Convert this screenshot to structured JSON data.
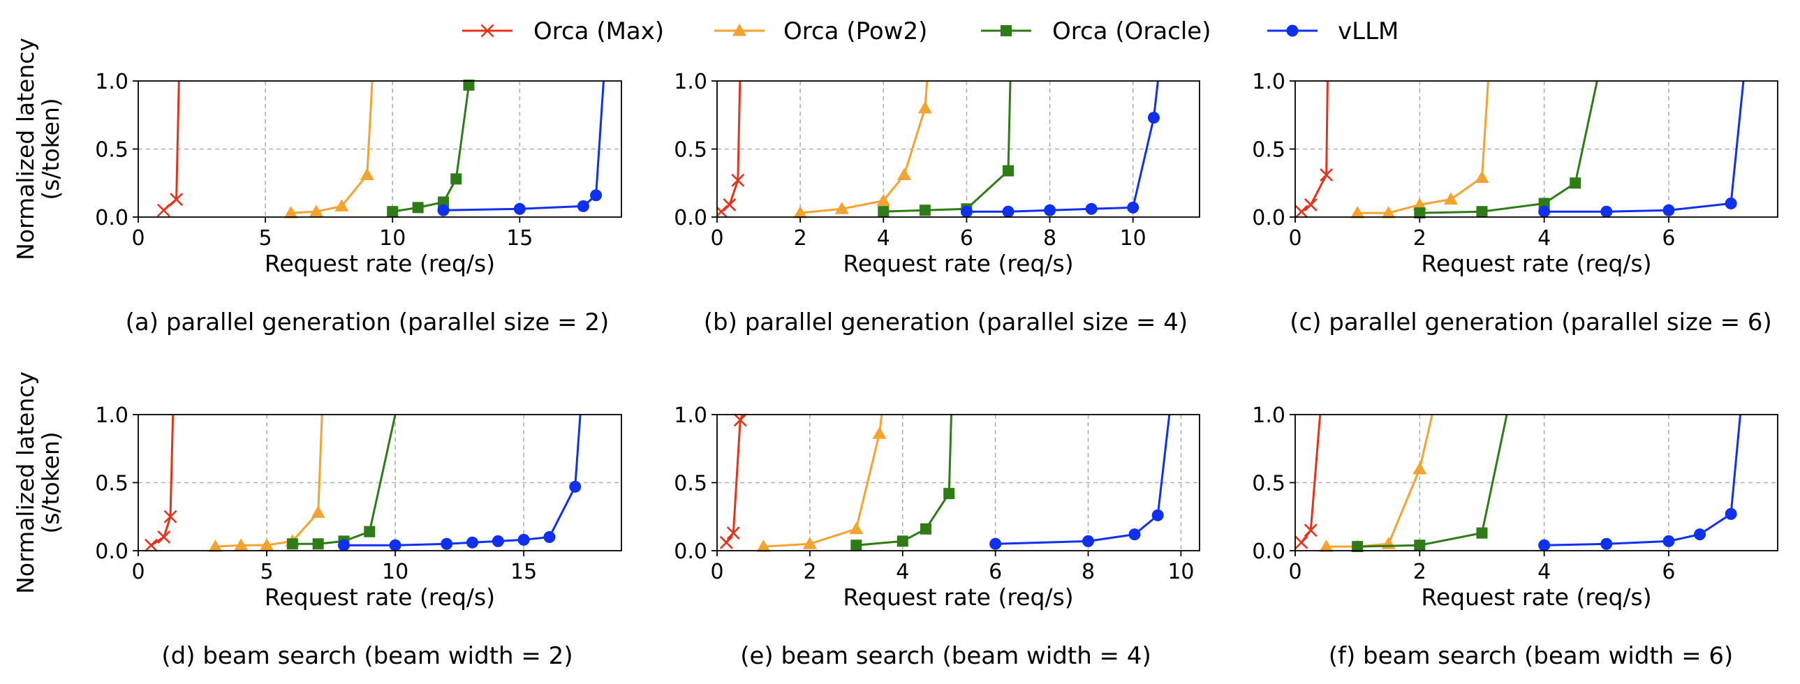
{
  "legend": [
    {
      "label": "Orca (Max)",
      "color": "#e8311a",
      "marker": "x"
    },
    {
      "label": "Orca (Pow2)",
      "color": "#f4a230",
      "marker": "triangle"
    },
    {
      "label": "Orca (Oracle)",
      "color": "#2e7b17",
      "marker": "square"
    },
    {
      "label": "vLLM",
      "color": "#1030f0",
      "marker": "circle"
    }
  ],
  "chart_data": [
    {
      "type": "line",
      "caption": "(a) parallel generation (parallel size = 2)",
      "xlabel": "Request rate (req/s)",
      "ylabel": [
        "Normalized latency",
        "(s/token)"
      ],
      "xlim": [
        0,
        19
      ],
      "ylim": [
        0,
        1.0
      ],
      "xticks": [
        0,
        5,
        10,
        15
      ],
      "yticks": [
        0.0,
        0.5,
        1.0
      ],
      "grid": true,
      "series": [
        {
          "name": "Orca (Max)",
          "x": [
            1.0,
            1.5,
            1.6
          ],
          "y": [
            0.05,
            0.13,
            1.0
          ]
        },
        {
          "name": "Orca (Pow2)",
          "x": [
            6.0,
            7.0,
            8.0,
            9.0,
            9.2
          ],
          "y": [
            0.03,
            0.04,
            0.08,
            0.31,
            1.0
          ]
        },
        {
          "name": "Orca (Oracle)",
          "x": [
            10.0,
            11.0,
            12.0,
            12.5,
            13.0
          ],
          "y": [
            0.04,
            0.07,
            0.11,
            0.28,
            0.97
          ]
        },
        {
          "name": "vLLM",
          "x": [
            12.0,
            15.0,
            17.5,
            18.0,
            18.3
          ],
          "y": [
            0.05,
            0.06,
            0.08,
            0.16,
            1.0
          ]
        }
      ]
    },
    {
      "type": "line",
      "caption": "(b) parallel generation (parallel size = 4)",
      "xlabel": "Request rate (req/s)",
      "ylabel": [],
      "xlim": [
        0,
        11.6
      ],
      "ylim": [
        0,
        1.0
      ],
      "xticks": [
        0,
        2,
        4,
        6,
        8,
        10
      ],
      "yticks": [
        0.0,
        0.5,
        1.0
      ],
      "grid": true,
      "series": [
        {
          "name": "Orca (Max)",
          "x": [
            0.1,
            0.3,
            0.5,
            0.55
          ],
          "y": [
            0.04,
            0.09,
            0.27,
            1.0
          ]
        },
        {
          "name": "Orca (Pow2)",
          "x": [
            2.0,
            3.0,
            4.0,
            4.5,
            5.0,
            5.05
          ],
          "y": [
            0.03,
            0.06,
            0.12,
            0.31,
            0.8,
            1.0
          ]
        },
        {
          "name": "Orca (Oracle)",
          "x": [
            4.0,
            5.0,
            6.0,
            7.0,
            7.05
          ],
          "y": [
            0.04,
            0.05,
            0.06,
            0.34,
            1.0
          ]
        },
        {
          "name": "vLLM",
          "x": [
            6.0,
            7.0,
            8.0,
            9.0,
            10.0,
            10.5,
            10.6
          ],
          "y": [
            0.04,
            0.04,
            0.05,
            0.06,
            0.07,
            0.73,
            1.0
          ]
        }
      ]
    },
    {
      "type": "line",
      "caption": "(c) parallel generation (parallel size = 6)",
      "xlabel": "Request rate (req/s)",
      "ylabel": [],
      "xlim": [
        0,
        7.75
      ],
      "ylim": [
        0,
        1.0
      ],
      "xticks": [
        0,
        2,
        4,
        6
      ],
      "yticks": [
        0.0,
        0.5,
        1.0
      ],
      "grid": true,
      "series": [
        {
          "name": "Orca (Max)",
          "x": [
            0.1,
            0.25,
            0.5,
            0.52
          ],
          "y": [
            0.04,
            0.09,
            0.31,
            1.0
          ]
        },
        {
          "name": "Orca (Pow2)",
          "x": [
            1.0,
            1.5,
            2.0,
            2.5,
            3.0,
            3.1
          ],
          "y": [
            0.03,
            0.03,
            0.09,
            0.13,
            0.29,
            1.0
          ]
        },
        {
          "name": "Orca (Oracle)",
          "x": [
            2.0,
            3.0,
            4.0,
            4.5,
            4.85
          ],
          "y": [
            0.03,
            0.04,
            0.1,
            0.25,
            1.0
          ]
        },
        {
          "name": "vLLM",
          "x": [
            4.0,
            5.0,
            6.0,
            7.0,
            7.2
          ],
          "y": [
            0.04,
            0.04,
            0.05,
            0.1,
            1.0
          ]
        }
      ]
    },
    {
      "type": "line",
      "caption": "(d) beam search (beam width = 2)",
      "xlabel": "Request rate (req/s)",
      "ylabel": [
        "Normalized latency",
        "(s/token)"
      ],
      "xlim": [
        0,
        18.8
      ],
      "ylim": [
        0,
        1.0
      ],
      "xticks": [
        0,
        5,
        10,
        15
      ],
      "yticks": [
        0.0,
        0.5,
        1.0
      ],
      "grid": true,
      "series": [
        {
          "name": "Orca (Max)",
          "x": [
            0.5,
            1.0,
            1.25,
            1.35
          ],
          "y": [
            0.04,
            0.1,
            0.25,
            1.0
          ]
        },
        {
          "name": "Orca (Pow2)",
          "x": [
            3.0,
            4.0,
            5.0,
            6.0,
            7.0,
            7.15
          ],
          "y": [
            0.03,
            0.04,
            0.04,
            0.07,
            0.28,
            1.0
          ]
        },
        {
          "name": "Orca (Oracle)",
          "x": [
            6.0,
            7.0,
            8.0,
            9.0,
            10.0
          ],
          "y": [
            0.05,
            0.05,
            0.07,
            0.14,
            1.0
          ]
        },
        {
          "name": "vLLM",
          "x": [
            8.0,
            10.0,
            12.0,
            13.0,
            14.0,
            15.0,
            16.0,
            17.0,
            17.2
          ],
          "y": [
            0.04,
            0.04,
            0.05,
            0.06,
            0.07,
            0.08,
            0.1,
            0.47,
            1.0
          ]
        }
      ]
    },
    {
      "type": "line",
      "caption": "(e) beam search (beam width = 4)",
      "xlabel": "Request rate (req/s)",
      "ylabel": [],
      "xlim": [
        0,
        10.4
      ],
      "ylim": [
        0,
        1.0
      ],
      "xticks": [
        0,
        2,
        4,
        6,
        8,
        10
      ],
      "yticks": [
        0.0,
        0.5,
        1.0
      ],
      "grid": true,
      "series": [
        {
          "name": "Orca (Max)",
          "x": [
            0.2,
            0.35,
            0.5,
            0.55
          ],
          "y": [
            0.06,
            0.13,
            0.96,
            1.0
          ]
        },
        {
          "name": "Orca (Pow2)",
          "x": [
            1.0,
            2.0,
            3.0,
            3.5,
            3.55
          ],
          "y": [
            0.03,
            0.05,
            0.16,
            0.86,
            1.0
          ]
        },
        {
          "name": "Orca (Oracle)",
          "x": [
            3.0,
            4.0,
            4.5,
            5.0,
            5.05
          ],
          "y": [
            0.04,
            0.07,
            0.16,
            0.42,
            1.0
          ]
        },
        {
          "name": "vLLM",
          "x": [
            6.0,
            8.0,
            9.0,
            9.5,
            9.75
          ],
          "y": [
            0.05,
            0.07,
            0.12,
            0.26,
            1.0
          ]
        }
      ]
    },
    {
      "type": "line",
      "caption": "(f) beam search (beam width = 6)",
      "xlabel": "Request rate (req/s)",
      "ylabel": [],
      "xlim": [
        0,
        7.75
      ],
      "ylim": [
        0,
        1.0
      ],
      "xticks": [
        0,
        2,
        4,
        6
      ],
      "yticks": [
        0.0,
        0.5,
        1.0
      ],
      "grid": true,
      "series": [
        {
          "name": "Orca (Max)",
          "x": [
            0.1,
            0.25,
            0.4
          ],
          "y": [
            0.06,
            0.15,
            1.0
          ]
        },
        {
          "name": "Orca (Pow2)",
          "x": [
            0.5,
            1.0,
            1.5,
            2.0,
            2.2
          ],
          "y": [
            0.03,
            0.03,
            0.05,
            0.6,
            1.0
          ]
        },
        {
          "name": "Orca (Oracle)",
          "x": [
            1.0,
            2.0,
            3.0,
            3.4
          ],
          "y": [
            0.03,
            0.04,
            0.13,
            1.0
          ]
        },
        {
          "name": "vLLM",
          "x": [
            4.0,
            5.0,
            6.0,
            6.5,
            7.0,
            7.15
          ],
          "y": [
            0.04,
            0.05,
            0.07,
            0.12,
            0.27,
            1.0
          ]
        }
      ]
    }
  ]
}
